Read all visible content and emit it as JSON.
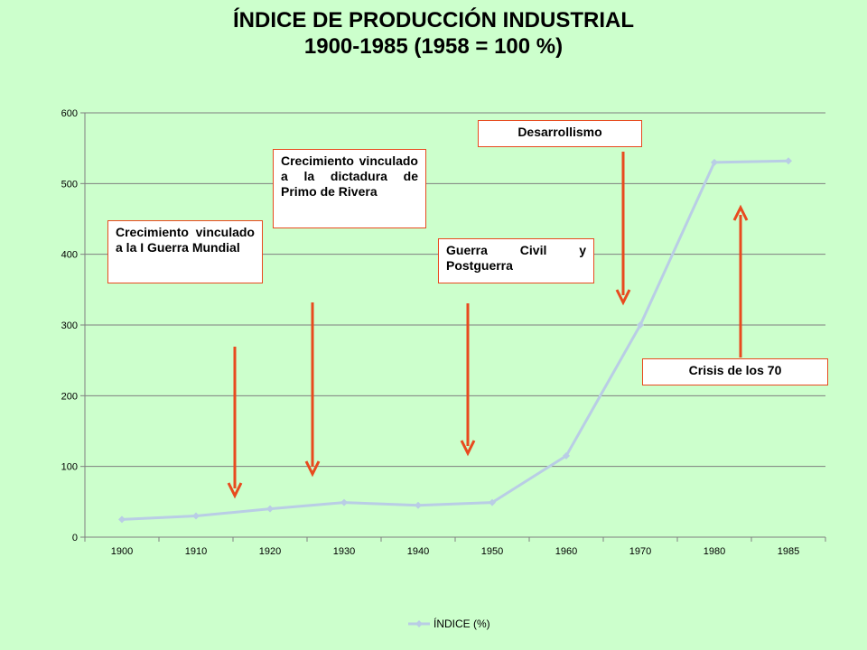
{
  "title": {
    "line1": "ÍNDICE DE PRODUCCIÓN INDUSTRIAL",
    "line2": "1900-1985 (1958 = 100 %)"
  },
  "annotations": {
    "guerra_mundial": "Crecimiento vinculado a la I Guerra Mundial",
    "primo_rivera": "Crecimiento vinculado a la dictadura de Primo de Rivera",
    "guerra_civil": "Guerra Civil y Postguerra",
    "desarrollismo": "Desarrollismo",
    "crisis": "Crisis de los 70"
  },
  "colors": {
    "background": "#ccffcc",
    "line": "#b9cde5",
    "arrow": "#e84a1e",
    "grid": "#7f7f7f"
  },
  "chart_data": {
    "type": "line",
    "categories": [
      "1900",
      "1910",
      "1920",
      "1930",
      "1940",
      "1950",
      "1960",
      "1970",
      "1980",
      "1985"
    ],
    "series": [
      {
        "name": "ÍNDICE (%)",
        "values": [
          25,
          30,
          40,
          49,
          45,
          49,
          115,
          300,
          530,
          532
        ]
      }
    ],
    "yticks": [
      0,
      100,
      200,
      300,
      400,
      500,
      600
    ],
    "ylim": [
      0,
      600
    ],
    "grid": true,
    "legend": "bottom"
  }
}
